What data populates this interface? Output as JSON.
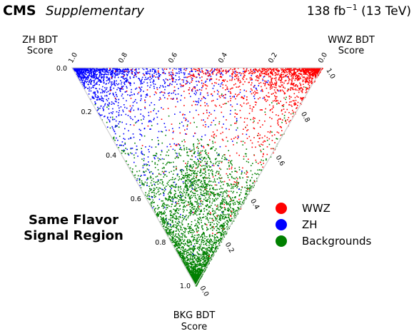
{
  "header": {
    "experiment": "CMS",
    "tag": "Supplementary",
    "lumi_prefix": "138 fb",
    "lumi_exponent": "−1",
    "lumi_suffix": " (13 TeV)"
  },
  "chart_data": {
    "type": "scatter",
    "subtype": "ternary",
    "title": "",
    "axes": {
      "zh": {
        "label_line1": "ZH BDT",
        "label_line2": "Score",
        "corner": "top-left"
      },
      "wwz": {
        "label_line1": "WWZ BDT",
        "label_line2": "Score",
        "corner": "top-right"
      },
      "bkg": {
        "label_line1": "BKG BDT",
        "label_line2": "Score",
        "corner": "bottom"
      }
    },
    "range": [
      0.0,
      1.0
    ],
    "top_edge_ticks": [
      "1.0",
      "0.8",
      "0.6",
      "0.4",
      "0.2",
      "0.0"
    ],
    "left_edge_ticks": [
      "0.0",
      "0.2",
      "0.4",
      "0.6",
      "0.8",
      "1.0"
    ],
    "right_edge_ticks": [
      "1.0",
      "0.8",
      "0.6",
      "0.4",
      "0.2",
      "0.0"
    ],
    "annotation_line1": "Same Flavor",
    "annotation_line2": "Signal Region",
    "legend_placement": "center-right",
    "series": [
      {
        "name": "WWZ",
        "color": "#ff0000",
        "concentration": "near WWZ score = 1 (top-right corner), spread along top edge"
      },
      {
        "name": "ZH",
        "color": "#0000ff",
        "concentration": "near ZH score = 1 (top-left corner), spread along top and left edges"
      },
      {
        "name": "Backgrounds",
        "color": "#008000",
        "concentration": "near BKG score = 1 (bottom corner), spread along left and right edges"
      }
    ]
  }
}
